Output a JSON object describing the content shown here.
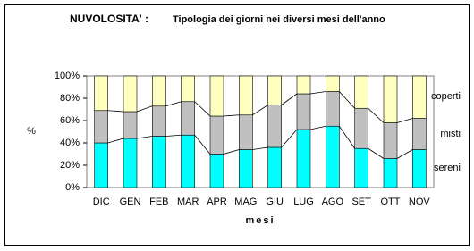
{
  "chart_data": {
    "type": "stacked_bar",
    "title": "NUVOLOSITA' :",
    "subtitle": "Tipologia dei giorni nei diversi mesi dell'anno",
    "x_label": "mesi",
    "y_label": "%",
    "categories": [
      "DIC",
      "GEN",
      "FEB",
      "MAR",
      "APR",
      "MAG",
      "GIU",
      "LUG",
      "AGO",
      "SET",
      "OTT",
      "NOV"
    ],
    "series": [
      {
        "name": "sereni",
        "color": "#00ffff",
        "values": [
          40,
          44,
          46,
          47,
          30,
          34,
          36,
          52,
          55,
          35,
          26,
          34
        ]
      },
      {
        "name": "misti",
        "color": "#c0c0c0",
        "values": [
          29,
          24,
          27,
          30,
          34,
          31,
          38,
          32,
          31,
          36,
          32,
          28
        ]
      },
      {
        "name": "coperti",
        "color": "#ffffc0",
        "values": [
          31,
          32,
          27,
          23,
          36,
          35,
          26,
          16,
          14,
          29,
          42,
          38
        ]
      }
    ],
    "ylim": [
      0,
      100
    ],
    "yticks": [
      {
        "value": 0,
        "label": "0%"
      },
      {
        "value": 20,
        "label": "20%"
      },
      {
        "value": 40,
        "label": "40%"
      },
      {
        "value": 60,
        "label": "60%"
      },
      {
        "value": 80,
        "label": "80%"
      },
      {
        "value": 100,
        "label": "100%"
      }
    ],
    "grid": false
  }
}
